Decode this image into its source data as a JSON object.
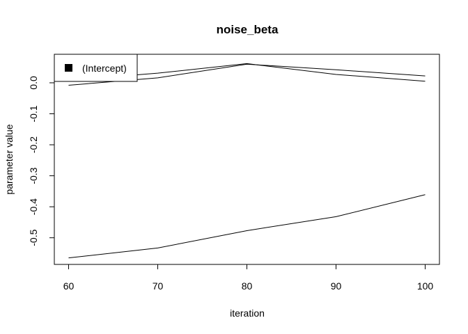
{
  "chart_data": {
    "type": "line",
    "title": "noise_beta",
    "xlabel": "iteration",
    "ylabel": "parameter value",
    "x": [
      60,
      70,
      80,
      90,
      100
    ],
    "xticks": [
      60,
      70,
      80,
      90,
      100
    ],
    "xtick_labels": [
      "60",
      "70",
      "80",
      "90",
      "100"
    ],
    "yticks": [
      0.0,
      -0.1,
      -0.2,
      -0.3,
      -0.4,
      -0.5
    ],
    "ytick_labels": [
      "0.0",
      "-0.1",
      "-0.2",
      "-0.3",
      "-0.4",
      "-0.5"
    ],
    "xlim": [
      58.4,
      101.6
    ],
    "ylim": [
      -0.586,
      0.092
    ],
    "grid": false,
    "legend_position": "top-left",
    "legend": [
      "(Intercept)"
    ],
    "line_color": "#000000",
    "series": [
      {
        "values": [
          -0.008,
          0.016,
          0.06,
          0.042,
          0.022
        ]
      },
      {
        "values": [
          0.008,
          0.031,
          0.062,
          0.027,
          0.005
        ]
      },
      {
        "values": [
          -0.565,
          -0.533,
          -0.477,
          -0.432,
          -0.361
        ]
      }
    ]
  }
}
